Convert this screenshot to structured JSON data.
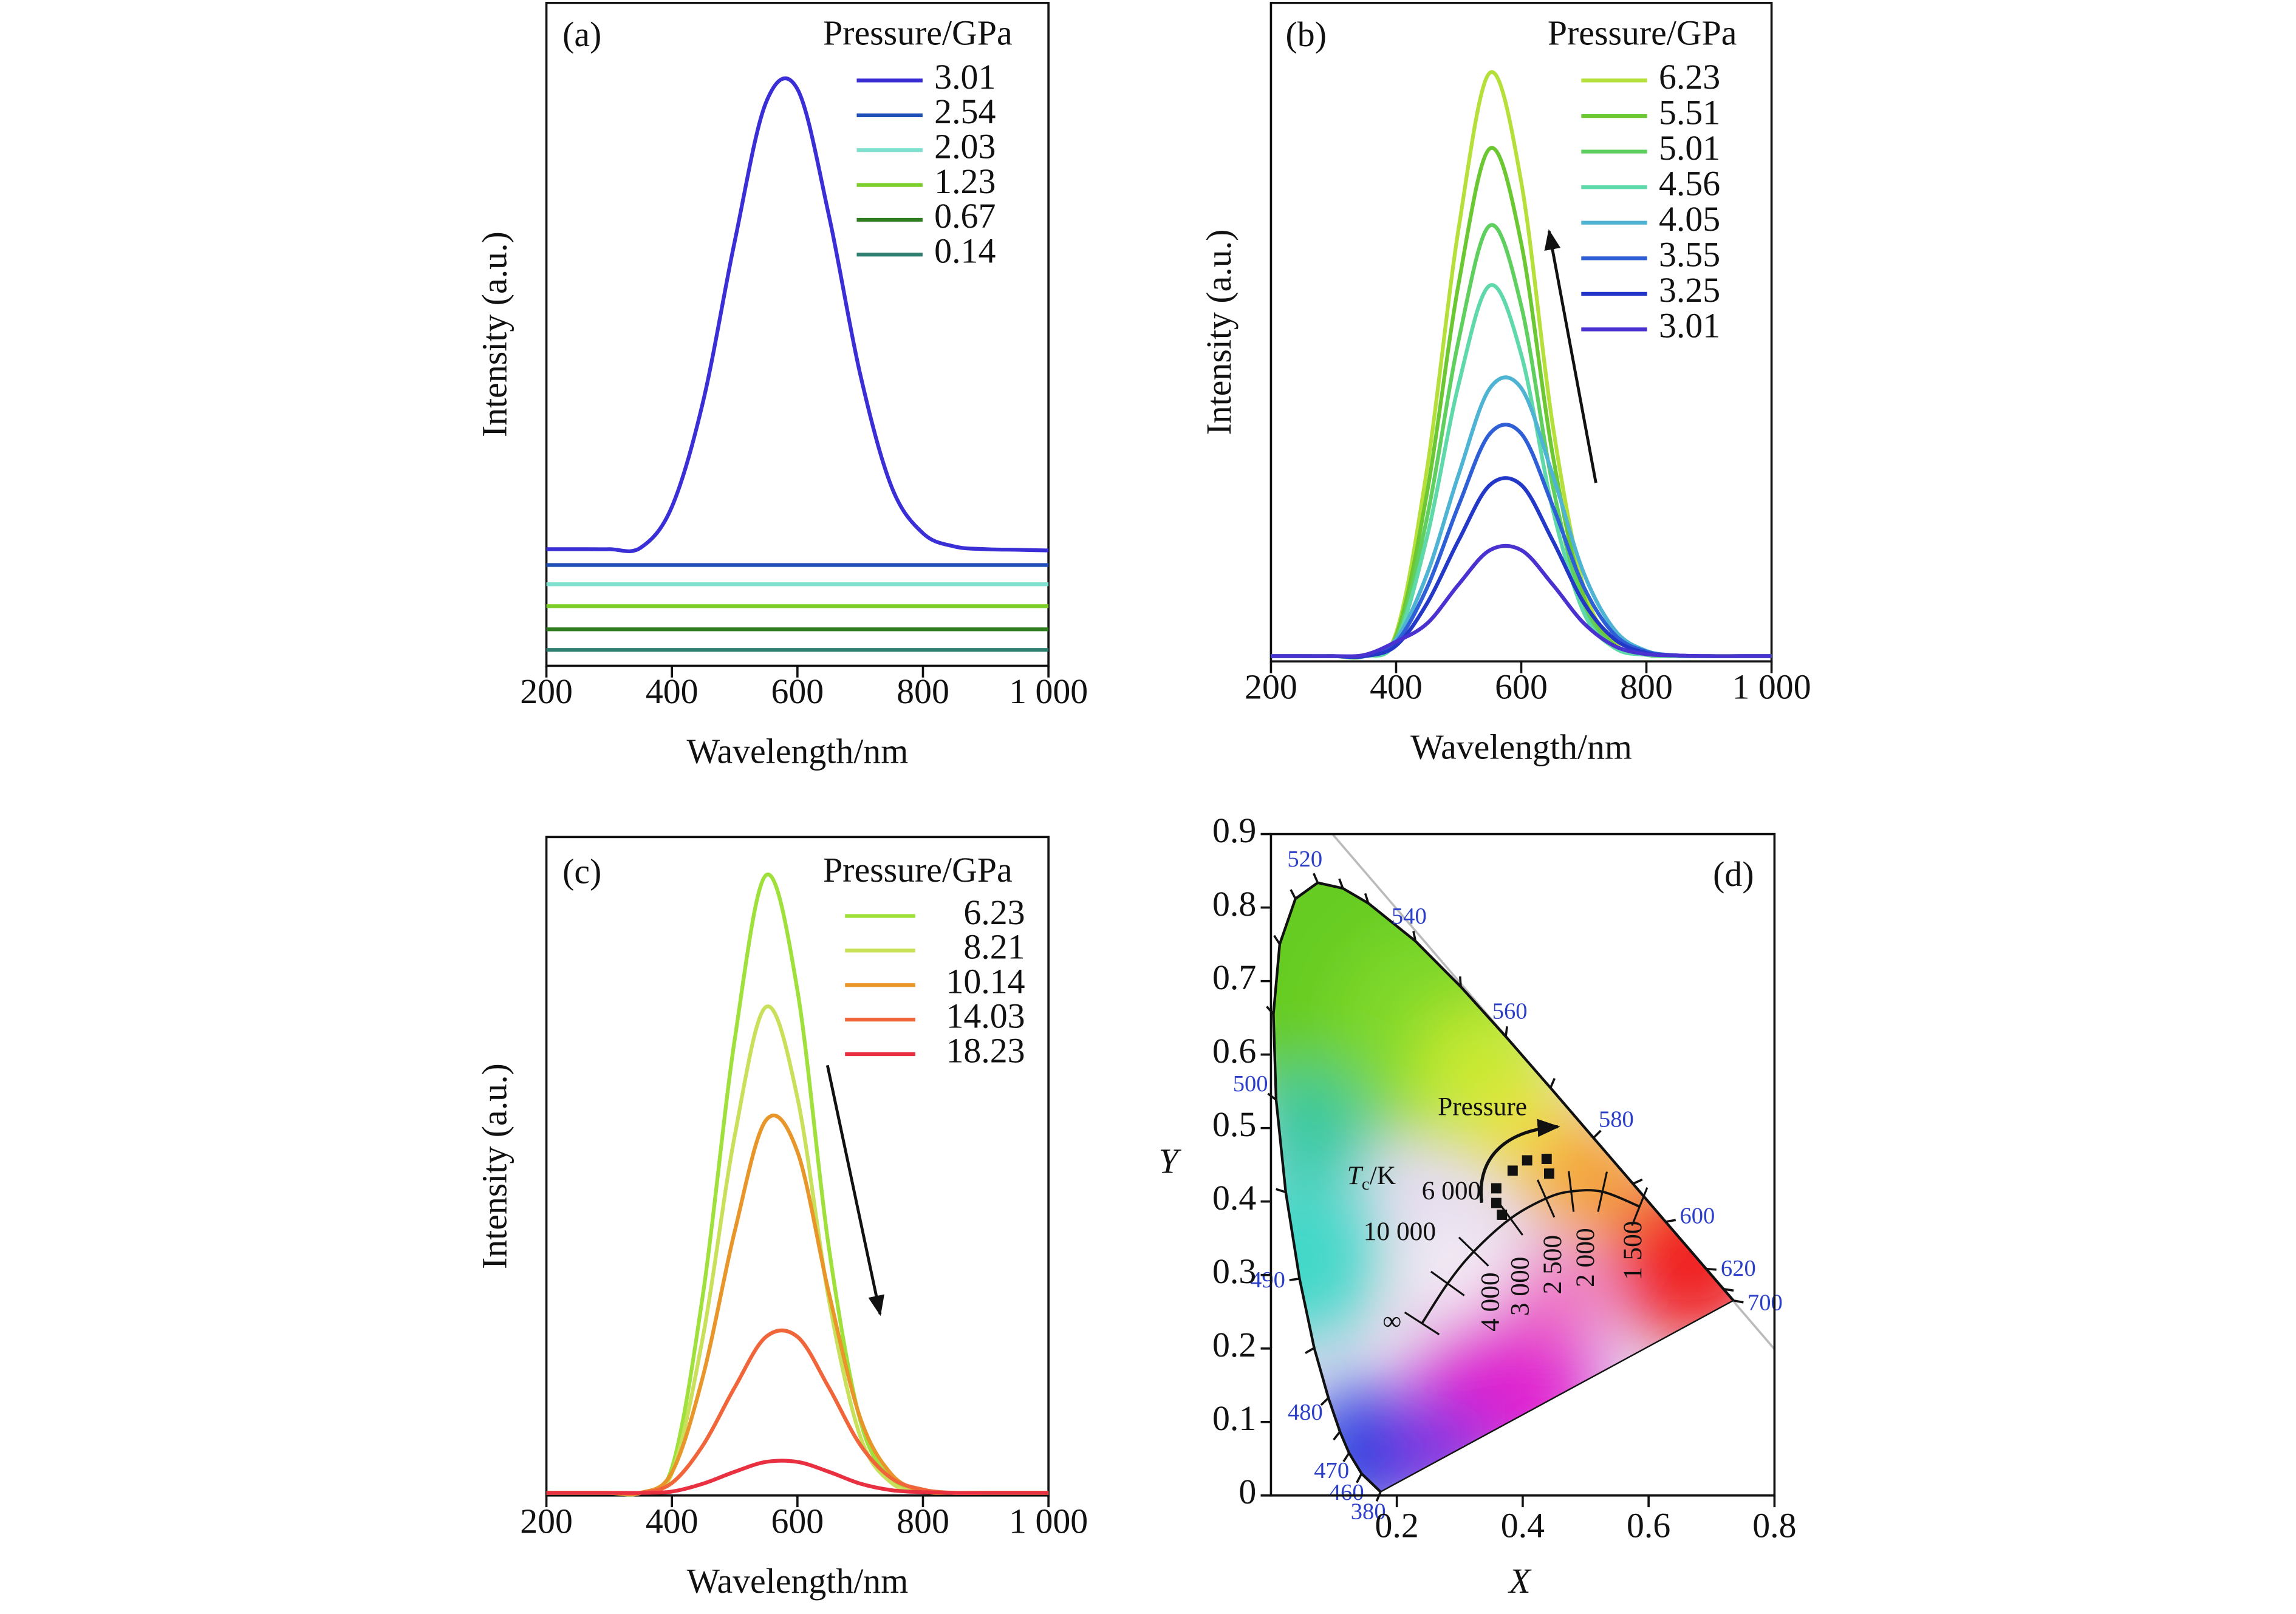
{
  "chart_data": [
    {
      "type": "line",
      "label": "(a)",
      "x_label": "Wavelength/nm",
      "y_label": "Intensity (a.u.)",
      "xlim": [
        200,
        1000
      ],
      "xticks": [
        200,
        400,
        600,
        800,
        {
          "value": 1000,
          "label": "1 000"
        }
      ],
      "ylim": [
        0,
        100
      ],
      "legend_title": "Pressure/GPa",
      "legend": "upper right",
      "x": [
        200,
        250,
        300,
        350,
        400,
        450,
        500,
        550,
        600,
        650,
        700,
        750,
        800,
        850,
        900,
        950,
        1000
      ],
      "series": [
        {
          "name": "3.01",
          "color": "#3a2fd6",
          "values": [
            17.6,
            17.6,
            17.6,
            17.8,
            24,
            40,
            64,
            85,
            87,
            68,
            44,
            27,
            20,
            18,
            17.6,
            17.5,
            17.4
          ]
        },
        {
          "name": "2.54",
          "color": "#1f4fb5",
          "values": [
            15.2,
            15.2,
            15.2,
            15.2,
            15.2,
            15.2,
            15.2,
            15.2,
            15.2,
            15.2,
            15.2,
            15.2,
            15.2,
            15.2,
            15.2,
            15.2,
            15.2
          ]
        },
        {
          "name": "2.03",
          "color": "#7fe0d0",
          "values": [
            12.3,
            12.3,
            12.3,
            12.3,
            12.3,
            12.3,
            12.3,
            12.3,
            12.3,
            12.3,
            12.3,
            12.3,
            12.3,
            12.3,
            12.3,
            12.3,
            12.3
          ]
        },
        {
          "name": "1.23",
          "color": "#7ccf2a",
          "values": [
            9.0,
            9.0,
            9.0,
            9.0,
            9.0,
            9.0,
            9.0,
            9.0,
            9.0,
            9.0,
            9.0,
            9.0,
            9.0,
            9.0,
            9.0,
            9.0,
            9.0
          ]
        },
        {
          "name": "0.67",
          "color": "#2e7d1e",
          "values": [
            5.5,
            5.5,
            5.5,
            5.5,
            5.5,
            5.5,
            5.5,
            5.5,
            5.5,
            5.5,
            5.5,
            5.5,
            5.5,
            5.5,
            5.5,
            5.5,
            5.5
          ]
        },
        {
          "name": "0.14",
          "color": "#2e7f6f",
          "values": [
            2.4,
            2.4,
            2.4,
            2.4,
            2.4,
            2.4,
            2.4,
            2.4,
            2.4,
            2.4,
            2.4,
            2.4,
            2.4,
            2.4,
            2.4,
            2.4,
            2.4
          ]
        }
      ]
    },
    {
      "type": "line",
      "label": "(b)",
      "x_label": "Wavelength/nm",
      "y_label": "Intensity (a.u.)",
      "xlim": [
        200,
        1000
      ],
      "xticks": [
        200,
        400,
        600,
        800,
        {
          "value": 1000,
          "label": "1 000"
        }
      ],
      "ylim": [
        0,
        100
      ],
      "legend_title": "Pressure/GPa",
      "legend": "upper right",
      "x": [
        200,
        250,
        300,
        350,
        400,
        450,
        500,
        550,
        600,
        650,
        700,
        750,
        800,
        850,
        900,
        950,
        1000
      ],
      "series": [
        {
          "name": "6.23",
          "color": "#b5e03a",
          "values": [
            0.8,
            0.8,
            0.8,
            0.8,
            4.3,
            29.6,
            65.8,
            89.4,
            72.8,
            36.1,
            11.2,
            2.7,
            1.0,
            0.8,
            0.8,
            0.8,
            0.8
          ]
        },
        {
          "name": "5.51",
          "color": "#6cc832",
          "values": [
            0.8,
            0.8,
            0.8,
            0.8,
            3.9,
            25.9,
            57.4,
            77.9,
            63.5,
            31.5,
            9.8,
            2.4,
            1.0,
            0.8,
            0.8,
            0.8,
            0.8
          ]
        },
        {
          "name": "5.01",
          "color": "#5fcf5f",
          "values": [
            0.8,
            0.8,
            0.8,
            0.8,
            3.4,
            22.1,
            48.8,
            66.2,
            54.0,
            26.8,
            8.5,
            2.2,
            1.0,
            0.8,
            0.8,
            0.8,
            0.8
          ]
        },
        {
          "name": "4.56",
          "color": "#5fd9a9",
          "values": [
            0.8,
            0.8,
            0.8,
            0.8,
            3.1,
            19.1,
            42.1,
            57.1,
            46.6,
            23.2,
            7.4,
            2.0,
            1.0,
            0.8,
            0.8,
            0.8,
            0.8
          ]
        },
        {
          "name": "4.05",
          "color": "#4fb3d4",
          "values": [
            0.8,
            0.8,
            0.8,
            0.8,
            3.4,
            13.4,
            28.4,
            41.5,
            41.5,
            28.4,
            13.4,
            4.7,
            1.6,
            0.9,
            0.8,
            0.8,
            0.8
          ]
        },
        {
          "name": "3.55",
          "color": "#2f5fd6",
          "values": [
            0.8,
            0.8,
            0.8,
            0.8,
            2.9,
            11.3,
            23.7,
            34.6,
            34.6,
            23.7,
            11.3,
            4.0,
            1.5,
            0.9,
            0.8,
            0.8,
            0.8
          ]
        },
        {
          "name": "3.25",
          "color": "#2438c8",
          "values": [
            0.8,
            0.8,
            0.8,
            0.8,
            2.4,
            8.9,
            18.4,
            26.8,
            26.8,
            18.4,
            8.9,
            3.3,
            1.3,
            0.9,
            0.8,
            0.8,
            0.8
          ]
        },
        {
          "name": "3.01",
          "color": "#4a32d0",
          "values": [
            0.8,
            0.8,
            0.8,
            1.0,
            3.0,
            5.8,
            11.7,
            16.9,
            16.9,
            11.7,
            5.8,
            2.3,
            1.1,
            0.9,
            0.8,
            0.8,
            0.8
          ]
        }
      ]
    },
    {
      "type": "line",
      "label": "(c)",
      "x_label": "Wavelength/nm",
      "y_label": "Intensity (a.u.)",
      "xlim": [
        200,
        1000
      ],
      "xticks": [
        200,
        400,
        600,
        800,
        {
          "value": 1000,
          "label": "1 000"
        }
      ],
      "ylim": [
        0,
        100
      ],
      "legend_title": "Pressure/GPa",
      "legend": "upper right",
      "x": [
        200,
        250,
        300,
        350,
        400,
        450,
        500,
        550,
        600,
        650,
        700,
        750,
        800,
        850,
        900,
        950,
        1000
      ],
      "series": [
        {
          "name": "6.23",
          "color": "#9fe03a",
          "values": [
            0.4,
            0.4,
            0.4,
            0.4,
            4.2,
            30.9,
            69.2,
            94.2,
            76.7,
            37.7,
            11.4,
            2.4,
            0.6,
            0.4,
            0.4,
            0.4,
            0.4
          ]
        },
        {
          "name": "8.21",
          "color": "#c8e05a",
          "values": [
            0.4,
            0.4,
            0.4,
            0.4,
            3.4,
            24.4,
            54.6,
            74.2,
            60.4,
            29.8,
            9.0,
            1.9,
            0.6,
            0.4,
            0.4,
            0.4,
            0.4
          ]
        },
        {
          "name": "10.14",
          "color": "#e8962a",
          "values": [
            0.4,
            0.4,
            0.4,
            0.4,
            3.5,
            18.3,
            40.1,
            57.0,
            52.2,
            30.8,
            11.8,
            3.2,
            0.7,
            0.4,
            0.4,
            0.4,
            0.4
          ]
        },
        {
          "name": "14.03",
          "color": "#f0663a",
          "values": [
            0.4,
            0.4,
            0.4,
            0.4,
            1.9,
            7.7,
            16.4,
            24.1,
            24.1,
            16.4,
            7.7,
            2.6,
            0.9,
            0.4,
            0.4,
            0.4,
            0.4
          ]
        },
        {
          "name": "18.23",
          "color": "#e83040",
          "values": [
            0.4,
            0.4,
            0.4,
            0.4,
            0.6,
            1.8,
            3.6,
            5.1,
            5.1,
            3.6,
            1.8,
            0.8,
            0.5,
            0.4,
            0.4,
            0.4,
            0.4
          ]
        }
      ]
    },
    {
      "type": "cie",
      "label": "(d)",
      "x_label": "X",
      "y_label": "Y",
      "xlim": [
        0,
        0.8
      ],
      "xticks": [
        0.2,
        0.4,
        0.6,
        0.8
      ],
      "ylim": [
        0,
        0.9
      ],
      "yticks": [
        0,
        0.1,
        0.2,
        0.3,
        0.4,
        0.5,
        0.6,
        0.7,
        0.8,
        0.9
      ],
      "spectral_locus": {
        "wavelengths": [
          380,
          460,
          470,
          null,
          480,
          null,
          490,
          null,
          500,
          null,
          null,
          null,
          520,
          null,
          null,
          540,
          null,
          560,
          null,
          580,
          null,
          600,
          620,
          null,
          700
        ],
        "x": [
          0.1741,
          0.144,
          0.1241,
          0.1096,
          0.0913,
          0.0687,
          0.0454,
          0.0235,
          0.0082,
          0.0039,
          0.0139,
          0.0389,
          0.0743,
          0.1142,
          0.1547,
          0.2296,
          0.3016,
          0.3731,
          0.4441,
          0.5125,
          0.5752,
          0.627,
          0.6915,
          0.719,
          0.7347
        ],
        "y": [
          0.005,
          0.0297,
          0.0578,
          0.0868,
          0.1327,
          0.2007,
          0.295,
          0.4127,
          0.5384,
          0.6548,
          0.7502,
          0.812,
          0.8338,
          0.8262,
          0.8059,
          0.7543,
          0.6923,
          0.6245,
          0.5547,
          0.4866,
          0.4242,
          0.3725,
          0.3083,
          0.2809,
          0.2653
        ]
      },
      "planckian_locus": {
        "title": {
          "main": "T",
          "sub": "c",
          "unit": "/K"
        },
        "labels": [
          "1 500",
          "2 000",
          "2 500",
          "3 000",
          "4 000",
          "6 000",
          "10 000",
          "∞"
        ],
        "x": [
          0.5857,
          0.5267,
          0.477,
          0.4369,
          0.3805,
          0.3221,
          0.2807,
          0.2399
        ],
        "y": [
          0.3931,
          0.4133,
          0.4137,
          0.4041,
          0.3768,
          0.3318,
          0.2884,
          0.2341
        ]
      },
      "points": {
        "x": [
          0.358,
          0.358,
          0.367,
          0.384,
          0.407,
          0.438,
          0.442
        ],
        "y": [
          0.418,
          0.398,
          0.382,
          0.442,
          0.456,
          0.458,
          0.438
        ]
      },
      "annotation": "Pressure"
    }
  ]
}
